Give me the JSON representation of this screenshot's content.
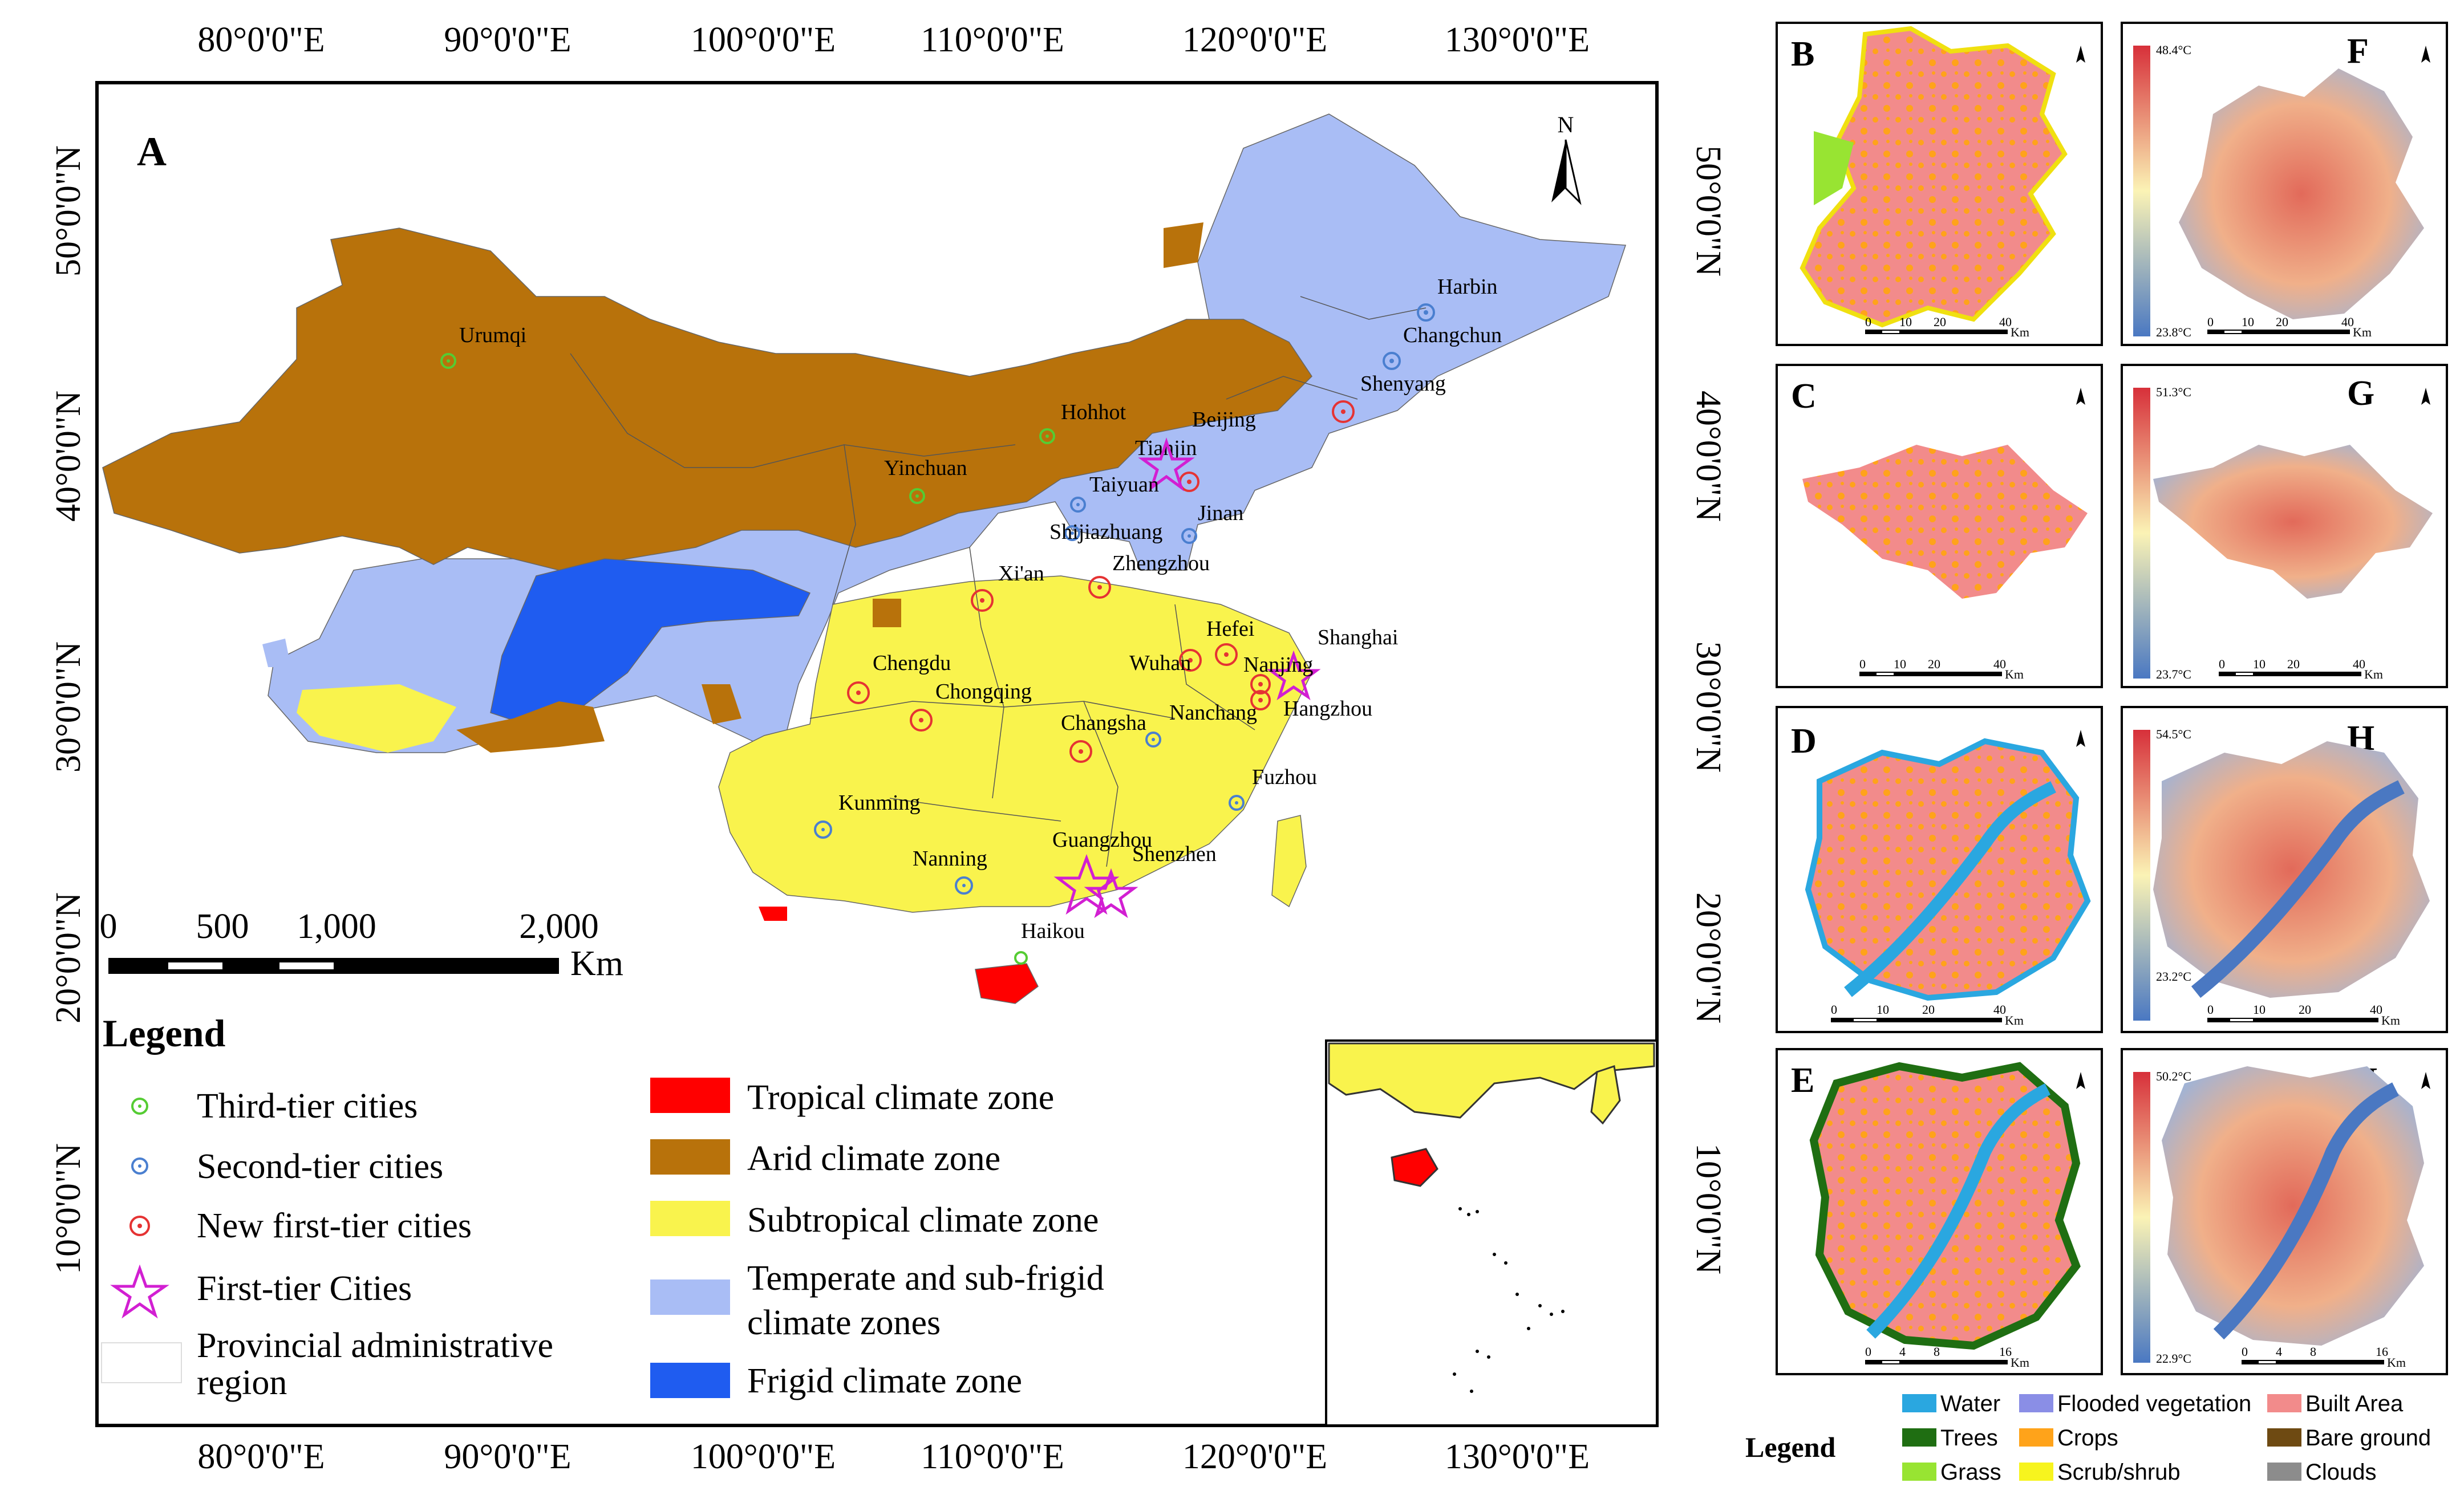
{
  "main_map": {
    "panel_letter": "A",
    "north_label": "N",
    "top_lon_labels": [
      "80°0'0\"E",
      "90°0'0\"E",
      "100°0'0\"E",
      "110°0'0\"E",
      "120°0'0\"E",
      "130°0'0\"E"
    ],
    "bottom_lon_labels": [
      "80°0'0\"E",
      "90°0'0\"E",
      "100°0'0\"E",
      "110°0'0\"E",
      "120°0'0\"E",
      "130°0'0\"E"
    ],
    "left_lat_labels": [
      "50°0'0\"N",
      "40°0'0\"N",
      "30°0'0\"N",
      "20°0'0\"N",
      "10°0'0\"N"
    ],
    "right_lat_labels": [
      "50°0'0\"N",
      "40°0'0\"N",
      "30°0'0\"N",
      "20°0'0\"N",
      "10°0'0\"N"
    ],
    "scale_bar": {
      "ticks": [
        "0",
        "500",
        "1,000",
        "2,000"
      ],
      "unit": "Km"
    },
    "cities": [
      {
        "name": "Harbin",
        "tier": "second"
      },
      {
        "name": "Changchun",
        "tier": "second"
      },
      {
        "name": "Shenyang",
        "tier": "new-first"
      },
      {
        "name": "Urumqi",
        "tier": "third"
      },
      {
        "name": "Hohhot",
        "tier": "third"
      },
      {
        "name": "Beijing",
        "tier": "first"
      },
      {
        "name": "Tianjin",
        "tier": "new-first"
      },
      {
        "name": "Yinchuan",
        "tier": "third"
      },
      {
        "name": "Taiyuan",
        "tier": "second"
      },
      {
        "name": "Jinan",
        "tier": "second"
      },
      {
        "name": "Shijiazhuang",
        "tier": "second"
      },
      {
        "name": "Zhengzhou",
        "tier": "new-first"
      },
      {
        "name": "Xi'an",
        "tier": "new-first"
      },
      {
        "name": "Shanghai",
        "tier": "first"
      },
      {
        "name": "Hefei",
        "tier": "new-first"
      },
      {
        "name": "Wuhan",
        "tier": "new-first"
      },
      {
        "name": "Nanjing",
        "tier": "new-first"
      },
      {
        "name": "Chengdu",
        "tier": "new-first"
      },
      {
        "name": "Chongqing",
        "tier": "new-first"
      },
      {
        "name": "Nanchang",
        "tier": "second"
      },
      {
        "name": "Hangzhou",
        "tier": "new-first"
      },
      {
        "name": "Changsha",
        "tier": "new-first"
      },
      {
        "name": "Fuzhou",
        "tier": "second"
      },
      {
        "name": "Kunming",
        "tier": "second"
      },
      {
        "name": "Guangzhou",
        "tier": "first"
      },
      {
        "name": "Shenzhen",
        "tier": "first"
      },
      {
        "name": "Nanning",
        "tier": "second"
      },
      {
        "name": "Haikou",
        "tier": "third"
      }
    ],
    "legend": {
      "title": "Legend",
      "city_items": [
        "Third-tier cities",
        "Second-tier cities",
        "New first-tier cities",
        "First-tier Cities"
      ],
      "province_item": [
        "Provincial administrative",
        "region"
      ],
      "zone_items": [
        {
          "label": [
            "Tropical climate zone"
          ],
          "color": "#ff0000"
        },
        {
          "label": [
            "Arid climate zone"
          ],
          "color": "#b8720b"
        },
        {
          "label": [
            "Subtropical climate zone"
          ],
          "color": "#f9f34d"
        },
        {
          "label": [
            "Temperate and sub-frigid",
            "climate zones"
          ],
          "color": "#a9bdf5"
        },
        {
          "label": [
            "Frigid climate zone"
          ],
          "color": "#1f5cf0"
        }
      ]
    },
    "colors": {
      "tropical": "#ff0000",
      "arid": "#b8720b",
      "subtropical": "#f9f34d",
      "temperate": "#a9bdf5",
      "frigid": "#1f5cf0",
      "third_tier": "#55cc33",
      "second_tier": "#4a7fd0",
      "new_first_tier": "#e53333",
      "first_tier": "#d21fd2"
    }
  },
  "panels": [
    {
      "letter": "B",
      "type": "landcover",
      "scale_ticks": [
        "0",
        "10",
        "20",
        "40"
      ],
      "scale_unit": "Km"
    },
    {
      "letter": "F",
      "type": "lst",
      "max": "48.4°C",
      "min": "23.8°C",
      "scale_ticks": [
        "0",
        "10",
        "20",
        "40"
      ],
      "scale_unit": "Km"
    },
    {
      "letter": "C",
      "type": "landcover",
      "scale_ticks": [
        "0",
        "10",
        "20",
        "40"
      ],
      "scale_unit": "Km"
    },
    {
      "letter": "G",
      "type": "lst",
      "max": "51.3°C",
      "min": "23.7°C",
      "scale_ticks": [
        "0",
        "10",
        "20",
        "40"
      ],
      "scale_unit": "Km"
    },
    {
      "letter": "D",
      "type": "landcover",
      "scale_ticks": [
        "0",
        "10",
        "20",
        "40"
      ],
      "scale_unit": "Km"
    },
    {
      "letter": "H",
      "type": "lst",
      "max": "54.5°C",
      "min": "23.2°C",
      "scale_ticks": [
        "0",
        "10",
        "20",
        "40"
      ],
      "scale_unit": "Km"
    },
    {
      "letter": "E",
      "type": "landcover",
      "scale_ticks": [
        "0",
        "4",
        "8",
        "16"
      ],
      "scale_unit": "Km"
    },
    {
      "letter": "I",
      "type": "lst",
      "max": "50.2°C",
      "min": "22.9°C",
      "scale_ticks": [
        "0",
        "4",
        "8",
        "16"
      ],
      "scale_unit": "Km"
    }
  ],
  "landcover_legend": {
    "title": "Legend",
    "items": [
      {
        "label": "Water",
        "color": "#2aa7e0"
      },
      {
        "label": "Flooded vegetation",
        "color": "#8a8ee6"
      },
      {
        "label": "Built Area",
        "color": "#f28b8b"
      },
      {
        "label": "Trees",
        "color": "#1f6e12"
      },
      {
        "label": "Crops",
        "color": "#ffa31a"
      },
      {
        "label": "Bare ground",
        "color": "#6e4a12"
      },
      {
        "label": "Grass",
        "color": "#98e432"
      },
      {
        "label": "Scrub/shrub",
        "color": "#f7f41e"
      },
      {
        "label": "Clouds",
        "color": "#8c8c8c"
      }
    ]
  },
  "lst_colors": {
    "high": "#d7303a",
    "mid": "#fbf3b5",
    "low": "#4a78c2"
  }
}
